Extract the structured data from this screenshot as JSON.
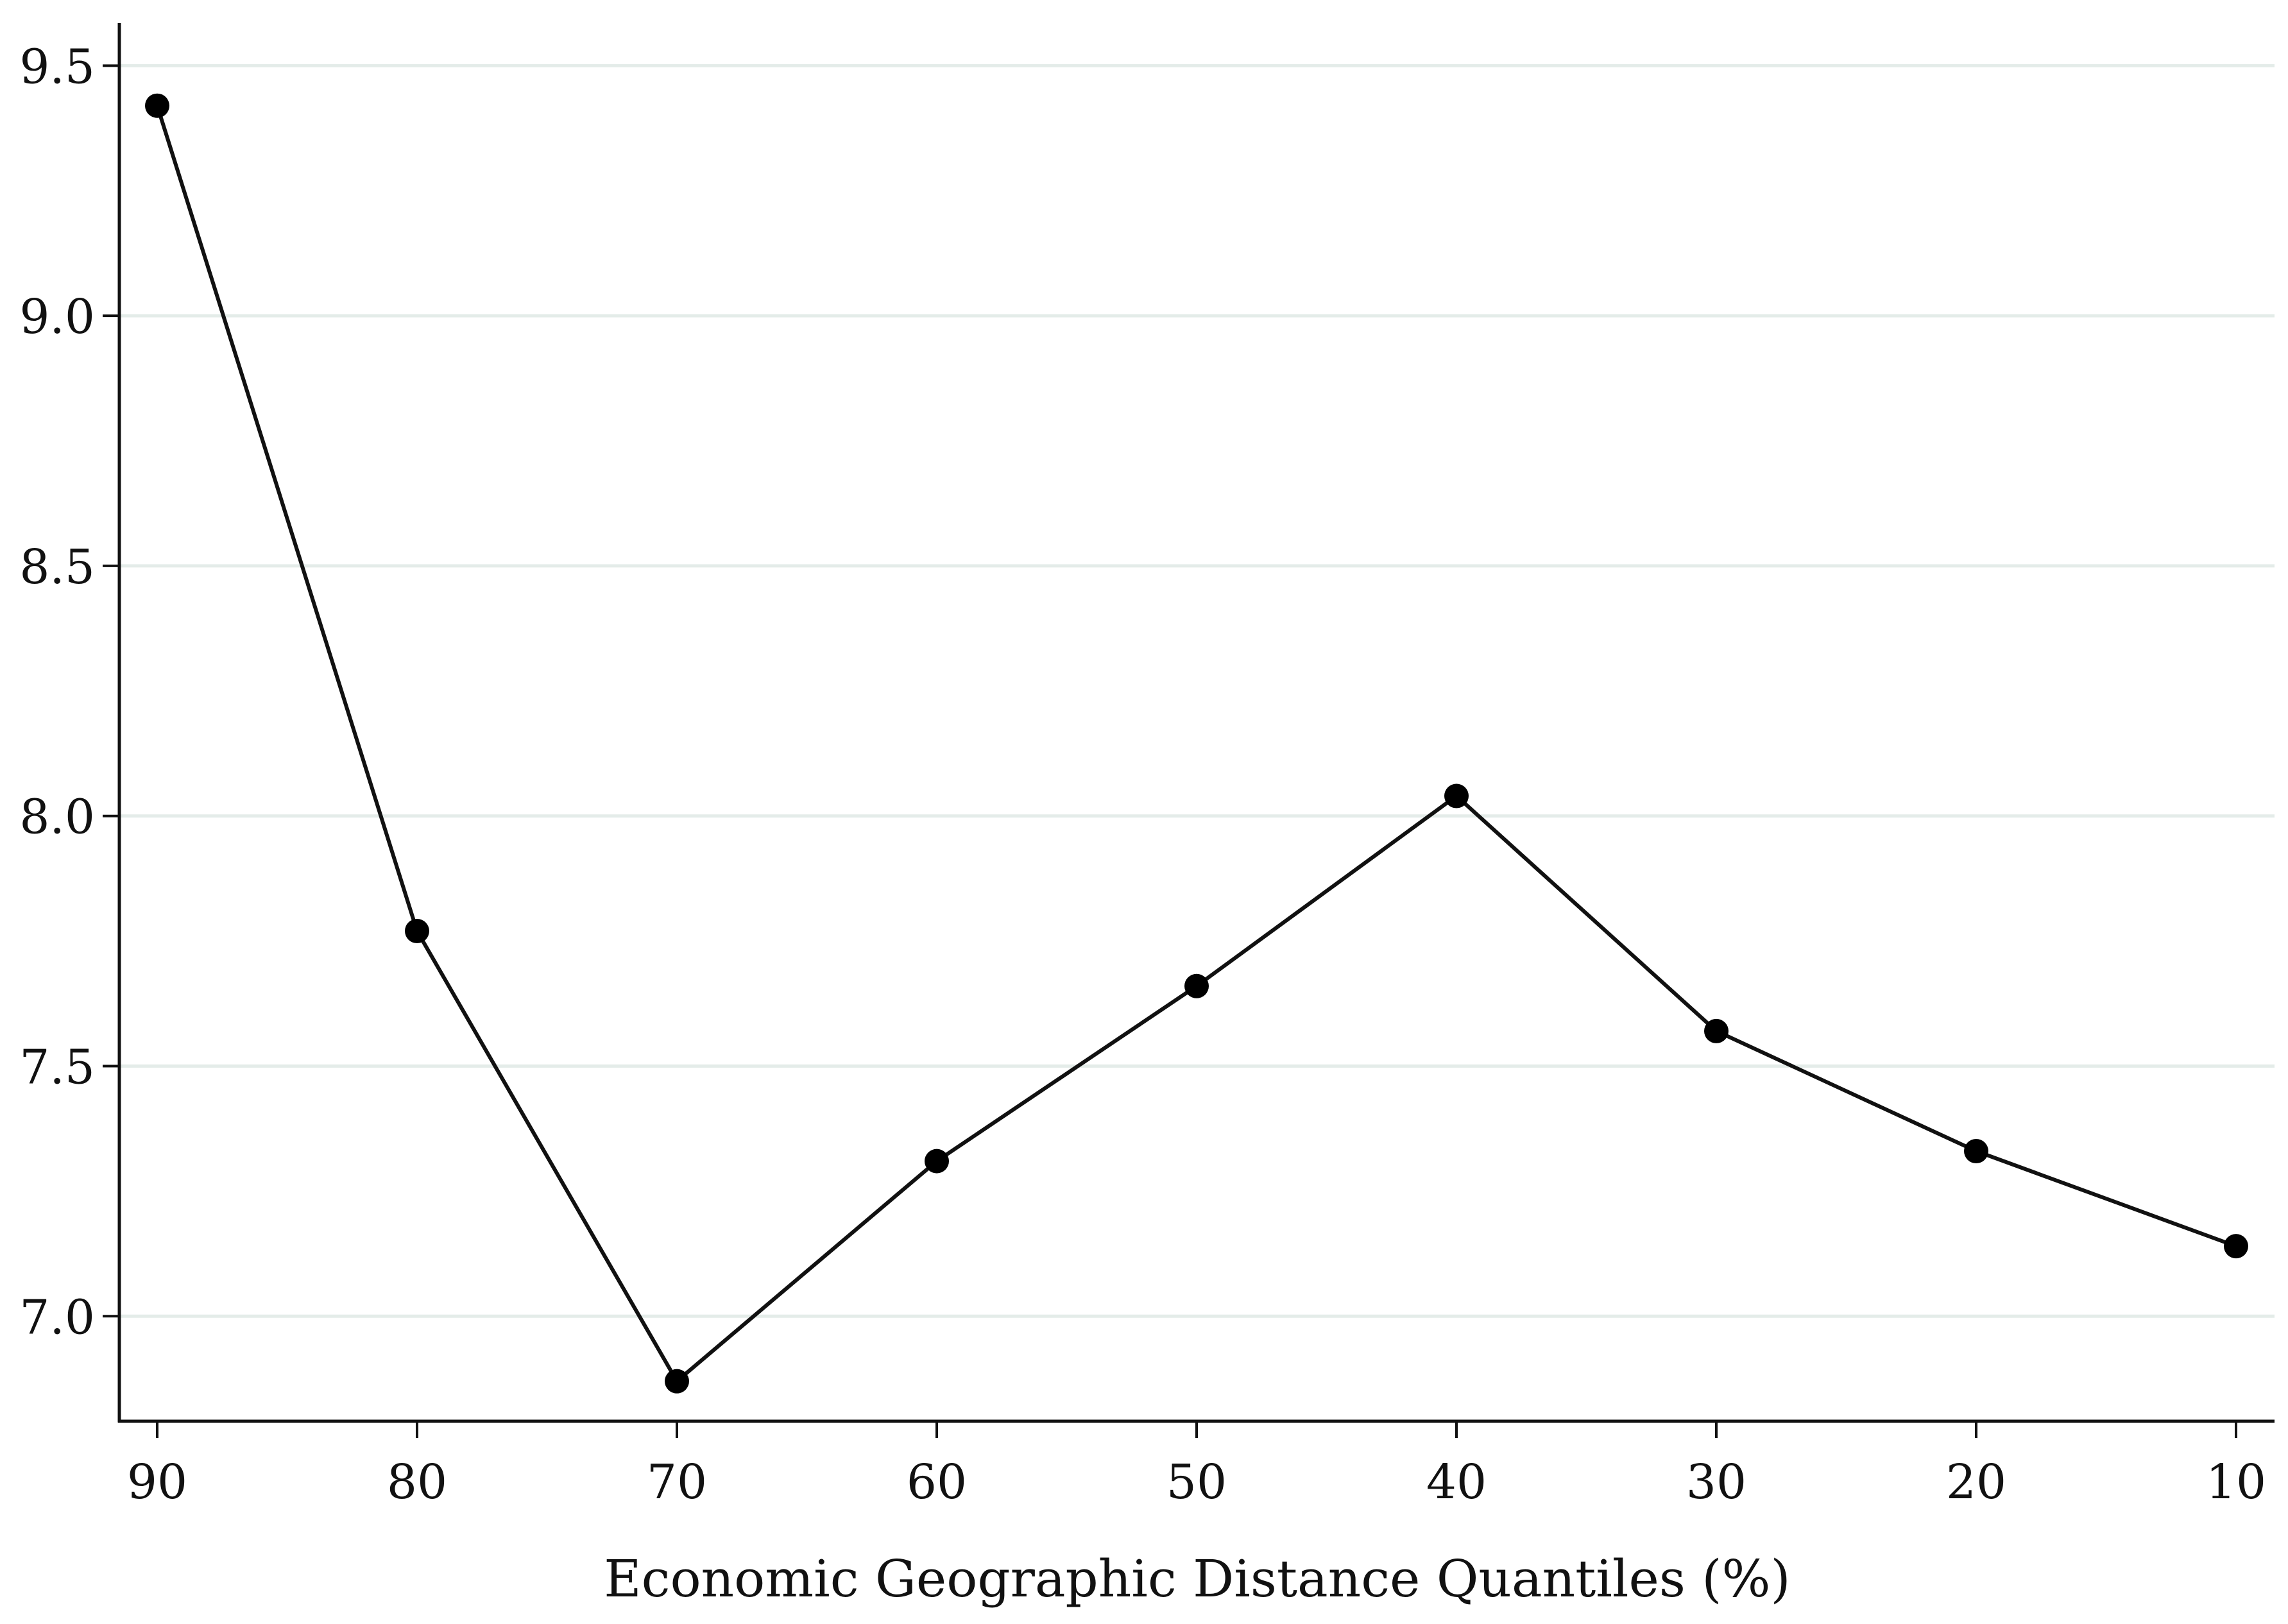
{
  "chart_data": {
    "type": "line",
    "title": "",
    "xlabel": "Economic Geographic Distance Quantiles (%)",
    "ylabel": "",
    "categories": [
      "90",
      "80",
      "70",
      "60",
      "50",
      "40",
      "30",
      "20",
      "10"
    ],
    "series": [
      {
        "values": [
          9.42,
          7.77,
          6.87,
          7.31,
          7.66,
          8.04,
          7.57,
          7.33,
          7.14
        ]
      }
    ],
    "ylim": [
      6.79,
      9.58
    ],
    "yticks": [
      "7.0",
      "7.5",
      "8.0",
      "8.5",
      "9.0",
      "9.5"
    ],
    "grid": true,
    "legend": "none",
    "colors": {
      "line": "#111111",
      "marker": "#000000",
      "grid": "#e4ece9",
      "axis": "#111111"
    }
  }
}
